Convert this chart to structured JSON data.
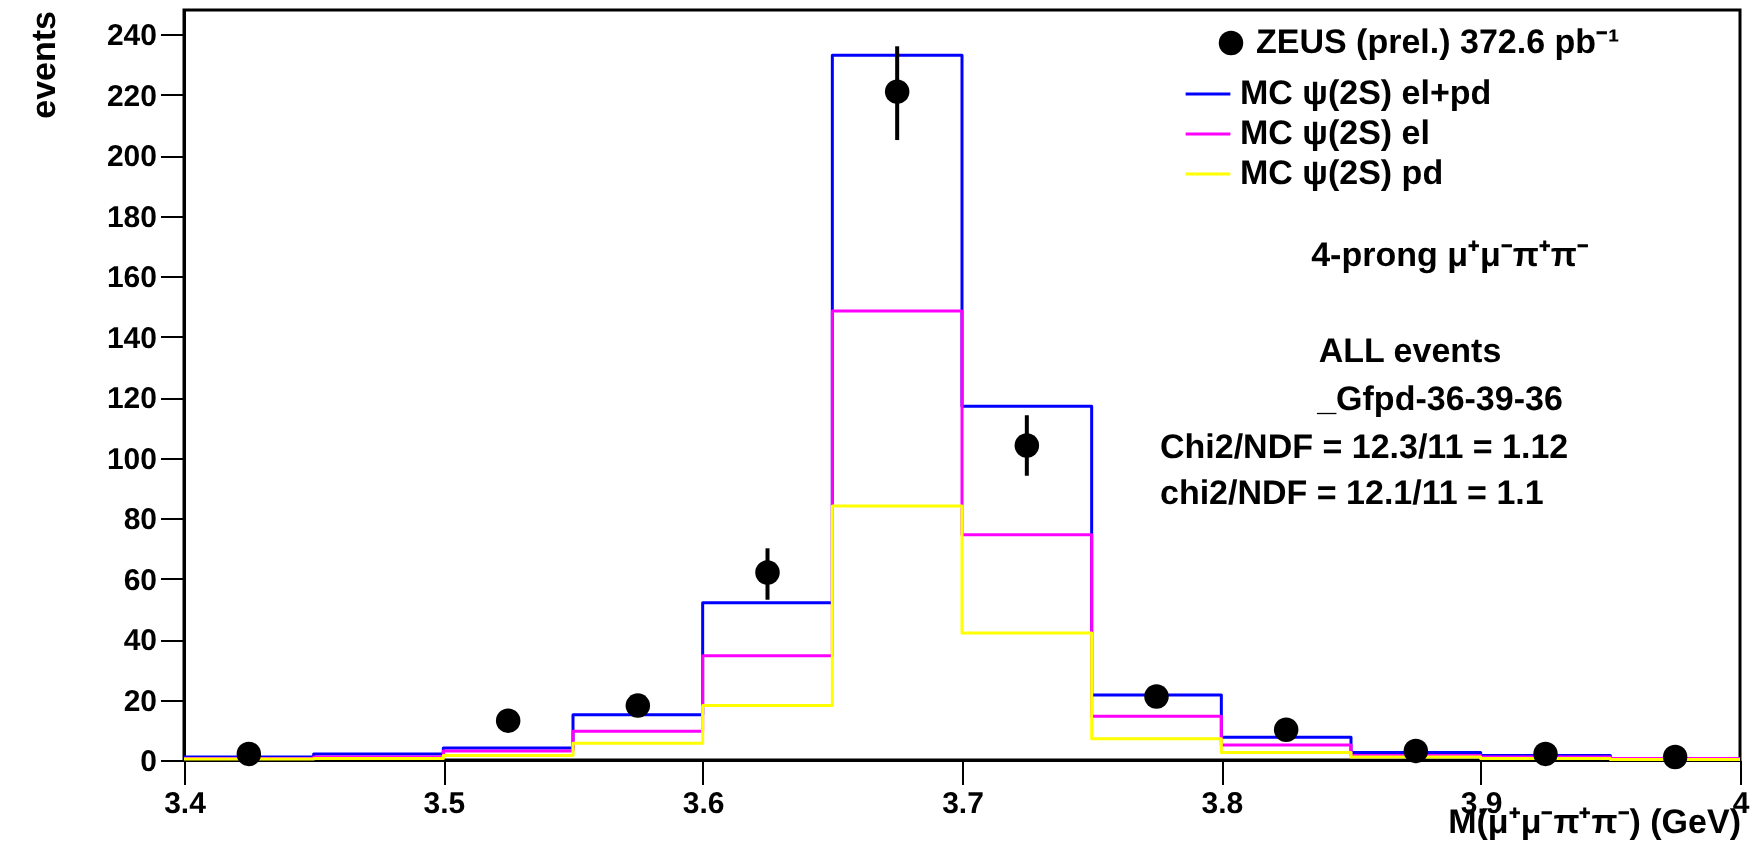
{
  "chart_data": {
    "type": "histogram",
    "xlabel": "M(μ⁺μ⁻π⁺π⁻) (GeV)",
    "ylabel": "events",
    "bins": [
      3.4,
      3.45,
      3.5,
      3.55,
      3.6,
      3.65,
      3.7,
      3.75,
      3.8,
      3.85,
      3.9,
      3.95,
      4.0
    ],
    "xlim": [
      3.4,
      4.0
    ],
    "xticks": [
      3.4,
      3.5,
      3.6,
      3.7,
      3.8,
      3.9,
      4
    ],
    "ylim": [
      0,
      248
    ],
    "yticks": [
      0,
      20,
      40,
      60,
      80,
      100,
      120,
      140,
      160,
      180,
      200,
      220,
      240
    ],
    "grid": false,
    "legend": "top right",
    "series": [
      {
        "name": "ZEUS (prel.) 372.6 pb⁻¹",
        "type": "scatter",
        "marker": "circle",
        "color": "#000000",
        "x": [
          3.425,
          3.475,
          3.525,
          3.575,
          3.625,
          3.675,
          3.725,
          3.775,
          3.825,
          3.875,
          3.925,
          3.975
        ],
        "values": [
          2,
          null,
          13,
          18,
          62,
          221,
          104,
          21,
          10,
          3,
          2,
          1
        ],
        "errors": [
          null,
          null,
          null,
          null,
          [
            53,
            70
          ],
          [
            205,
            236
          ],
          [
            94,
            114
          ],
          null,
          null,
          null,
          null,
          null
        ]
      },
      {
        "name": "MC ψ(2S) el+pd",
        "color": "#0000ff",
        "values": [
          1,
          2,
          4,
          15,
          52,
          233,
          117,
          21.5,
          7.5,
          2.5,
          1.5,
          0.5
        ]
      },
      {
        "name": "MC ψ(2S) el",
        "color": "#ff00ff",
        "values": [
          0.5,
          1,
          3,
          9.5,
          34.5,
          148.5,
          74.5,
          14.5,
          5,
          1.5,
          1,
          0.5
        ]
      },
      {
        "name": "MC ψ(2S) pd",
        "color": "#ffff00",
        "values": [
          0.3,
          0.5,
          1.5,
          5.5,
          18,
          84,
          42,
          7,
          2.5,
          1,
          0.5,
          0.2
        ]
      }
    ],
    "annotations": [
      "4-prong μ⁺μ⁻π⁺π⁻",
      "ALL events",
      "_Gfpd-36-39-36",
      "Chi2/NDF = 12.3/11 = 1.12",
      "chi2/NDF = 12.1/11 = 1.1"
    ]
  }
}
